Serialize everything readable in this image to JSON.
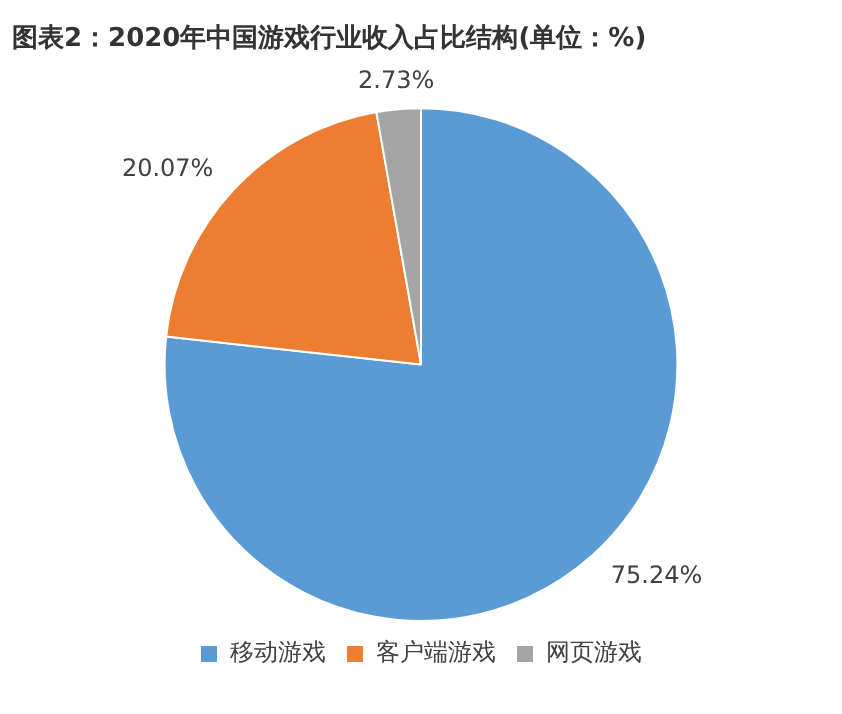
{
  "chart_data": {
    "type": "pie",
    "title": "图表2：2020年中国游戏行业收入占比结构(单位：%)",
    "categories": [
      "移动游戏",
      "客户端游戏",
      "网页游戏"
    ],
    "values": [
      75.24,
      20.07,
      2.73
    ],
    "colors": [
      "#5b9bd5",
      "#ed7d31",
      "#a5a5a5"
    ],
    "value_labels": [
      "75.24%",
      "20.07%",
      "2.73%"
    ],
    "legend": "bottom"
  }
}
